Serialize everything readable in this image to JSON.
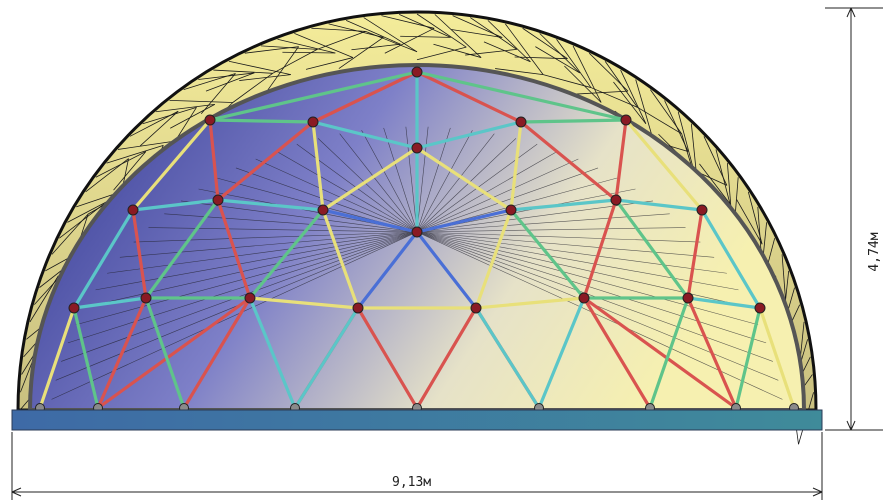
{
  "dimensions": {
    "width_label": "9,13м",
    "height_label": "4,74м"
  },
  "colors": {
    "strut_red": "#d9534f",
    "strut_yellow": "#e8e07a",
    "strut_green": "#5fc48a",
    "strut_cyan": "#5bc6c8",
    "strut_blue": "#4a6fd6",
    "dome_glass_left": "#3a3f9a",
    "dome_glass_right": "#f3edb0",
    "base_plate": "#3f6fa0",
    "node": "#8a1a24"
  },
  "icons": [
    "dimension-arrow-icon"
  ]
}
